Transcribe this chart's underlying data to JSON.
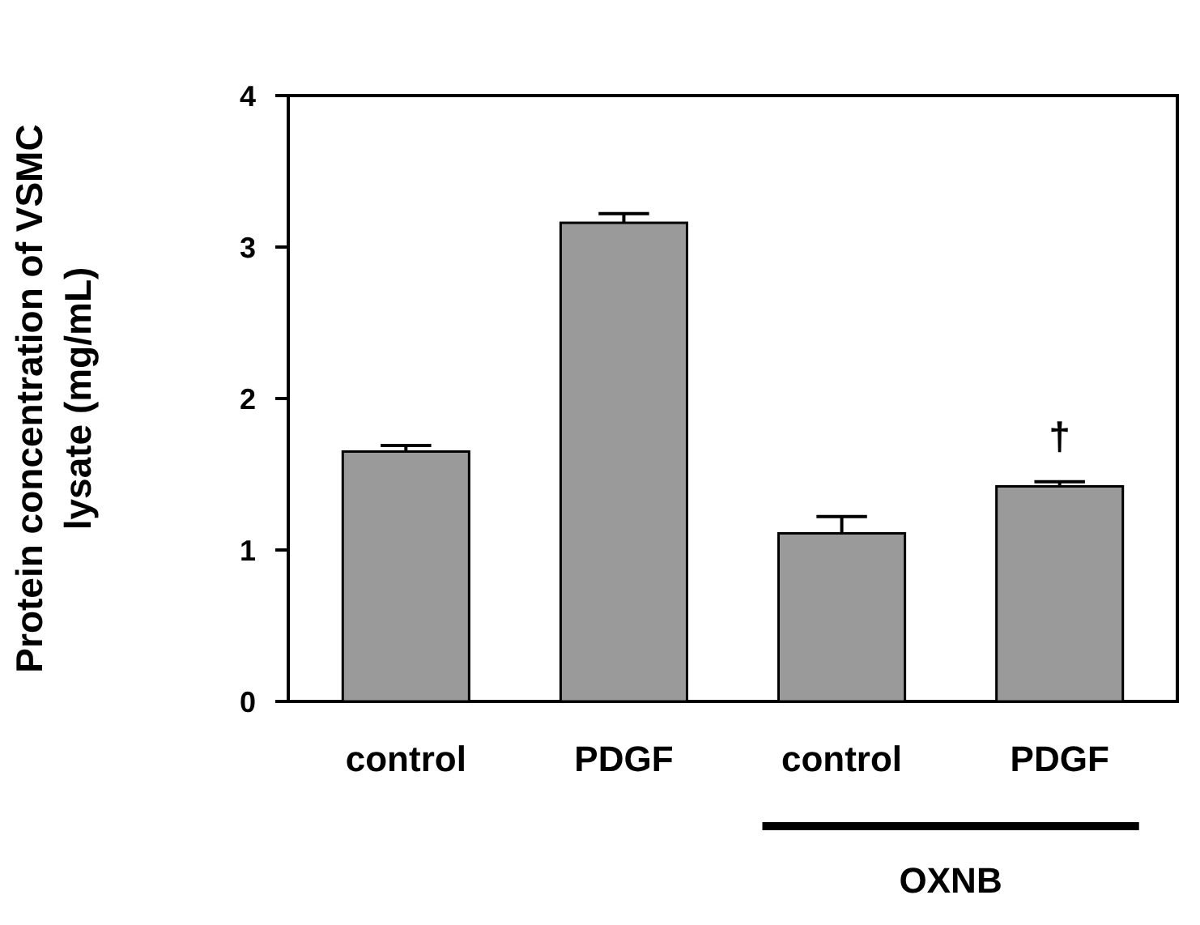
{
  "chart_data": {
    "type": "bar",
    "ylabel": "Protein concentration of VSMC\nlysate (mg/mL)",
    "categories": [
      "control",
      "PDGF",
      "control",
      "PDGF"
    ],
    "values": [
      1.65,
      3.16,
      1.11,
      1.42
    ],
    "errors": [
      0.04,
      0.06,
      0.11,
      0.03
    ],
    "color": "#9a9a9a",
    "ylim": [
      0,
      4
    ],
    "yticks": [
      0,
      1,
      2,
      3,
      4
    ],
    "annotations": [
      "†",
      "OXNB"
    ]
  }
}
